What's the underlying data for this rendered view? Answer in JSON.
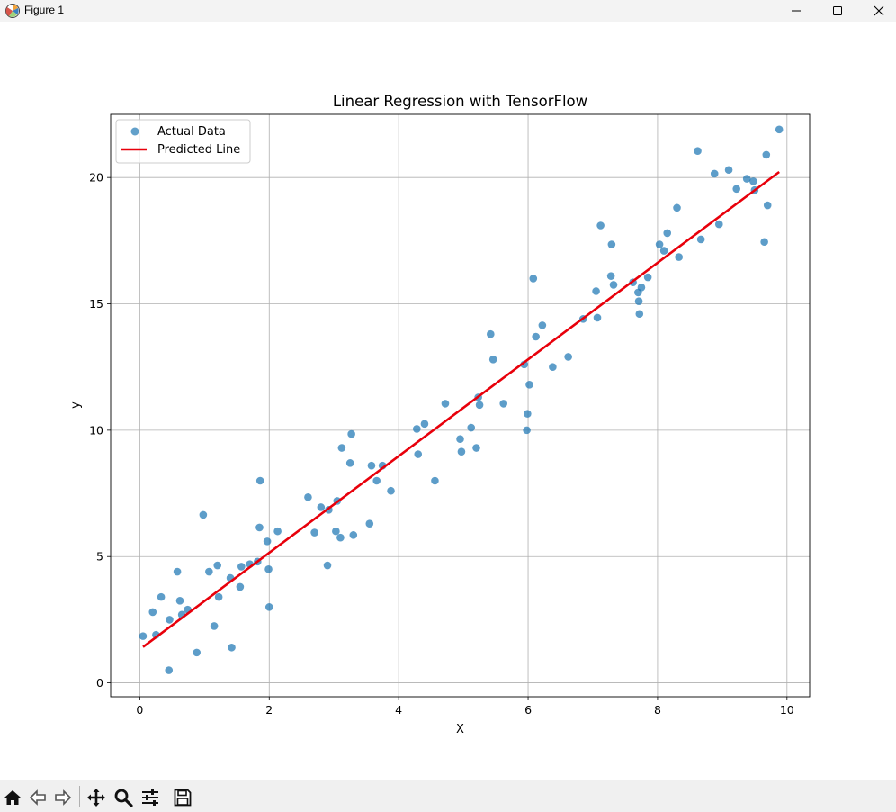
{
  "window": {
    "title": "Figure 1"
  },
  "toolbar": {
    "icons": [
      "home-icon",
      "back-icon",
      "forward-icon",
      "pan-icon",
      "zoom-icon",
      "configure-subplots-icon",
      "save-icon"
    ]
  },
  "chart_data": {
    "type": "scatter",
    "title": "Linear Regression with TensorFlow",
    "xlabel": "X",
    "ylabel": "y",
    "xlim": [
      -0.45,
      10.35
    ],
    "ylim": [
      -0.55,
      22.5
    ],
    "xticks": [
      0,
      2,
      4,
      6,
      8,
      10
    ],
    "yticks": [
      0,
      5,
      10,
      15,
      20
    ],
    "grid": true,
    "legend_position": "top-left",
    "series": [
      {
        "name": "Actual Data",
        "kind": "scatter",
        "color": "#1f77b4",
        "points": [
          [
            0.05,
            1.85
          ],
          [
            0.2,
            2.8
          ],
          [
            0.25,
            1.9
          ],
          [
            0.33,
            3.4
          ],
          [
            0.45,
            0.5
          ],
          [
            0.46,
            2.5
          ],
          [
            0.58,
            4.4
          ],
          [
            0.62,
            3.25
          ],
          [
            0.65,
            2.7
          ],
          [
            0.74,
            2.9
          ],
          [
            0.88,
            1.2
          ],
          [
            0.98,
            6.65
          ],
          [
            1.07,
            4.4
          ],
          [
            1.15,
            2.25
          ],
          [
            1.2,
            4.65
          ],
          [
            1.22,
            3.4
          ],
          [
            1.4,
            4.15
          ],
          [
            1.42,
            1.4
          ],
          [
            1.55,
            3.8
          ],
          [
            1.57,
            4.6
          ],
          [
            1.7,
            4.7
          ],
          [
            1.82,
            4.8
          ],
          [
            1.85,
            6.15
          ],
          [
            1.86,
            8.0
          ],
          [
            1.97,
            5.6
          ],
          [
            1.99,
            4.5
          ],
          [
            2.0,
            3.0
          ],
          [
            2.13,
            6.0
          ],
          [
            2.6,
            7.35
          ],
          [
            2.7,
            5.95
          ],
          [
            2.8,
            6.95
          ],
          [
            2.9,
            4.65
          ],
          [
            2.92,
            6.85
          ],
          [
            3.03,
            6.0
          ],
          [
            3.05,
            7.2
          ],
          [
            3.1,
            5.75
          ],
          [
            3.12,
            9.3
          ],
          [
            3.25,
            8.7
          ],
          [
            3.27,
            9.85
          ],
          [
            3.3,
            5.85
          ],
          [
            3.55,
            6.3
          ],
          [
            3.58,
            8.6
          ],
          [
            3.66,
            8.0
          ],
          [
            3.75,
            8.6
          ],
          [
            3.88,
            7.6
          ],
          [
            4.28,
            10.05
          ],
          [
            4.3,
            9.05
          ],
          [
            4.4,
            10.25
          ],
          [
            4.56,
            8.0
          ],
          [
            4.72,
            11.05
          ],
          [
            4.95,
            9.65
          ],
          [
            4.97,
            9.15
          ],
          [
            5.12,
            10.1
          ],
          [
            5.2,
            9.3
          ],
          [
            5.23,
            11.3
          ],
          [
            5.25,
            11.0
          ],
          [
            5.42,
            13.8
          ],
          [
            5.46,
            12.8
          ],
          [
            5.62,
            11.05
          ],
          [
            5.94,
            12.6
          ],
          [
            5.98,
            10.0
          ],
          [
            5.99,
            10.65
          ],
          [
            6.02,
            11.8
          ],
          [
            6.08,
            16.0
          ],
          [
            6.12,
            13.7
          ],
          [
            6.22,
            14.15
          ],
          [
            6.38,
            12.5
          ],
          [
            6.62,
            12.9
          ],
          [
            6.85,
            14.4
          ],
          [
            7.05,
            15.5
          ],
          [
            7.07,
            14.45
          ],
          [
            7.12,
            18.1
          ],
          [
            7.28,
            16.1
          ],
          [
            7.29,
            17.35
          ],
          [
            7.32,
            15.75
          ],
          [
            7.62,
            15.85
          ],
          [
            7.7,
            15.45
          ],
          [
            7.71,
            15.1
          ],
          [
            7.72,
            14.6
          ],
          [
            7.75,
            15.65
          ],
          [
            7.85,
            16.05
          ],
          [
            8.03,
            17.35
          ],
          [
            8.1,
            17.1
          ],
          [
            8.15,
            17.8
          ],
          [
            8.3,
            18.8
          ],
          [
            8.33,
            16.85
          ],
          [
            8.62,
            21.05
          ],
          [
            8.67,
            17.55
          ],
          [
            8.88,
            20.15
          ],
          [
            8.95,
            18.15
          ],
          [
            9.1,
            20.3
          ],
          [
            9.22,
            19.55
          ],
          [
            9.38,
            19.95
          ],
          [
            9.48,
            19.85
          ],
          [
            9.5,
            19.5
          ],
          [
            9.65,
            17.45
          ],
          [
            9.68,
            20.9
          ],
          [
            9.7,
            18.9
          ],
          [
            9.88,
            21.9
          ]
        ]
      },
      {
        "name": "Predicted Line",
        "kind": "line",
        "color": "#e8000b",
        "x": [
          0.05,
          9.88
        ],
        "y": [
          1.42,
          20.22
        ]
      }
    ]
  }
}
